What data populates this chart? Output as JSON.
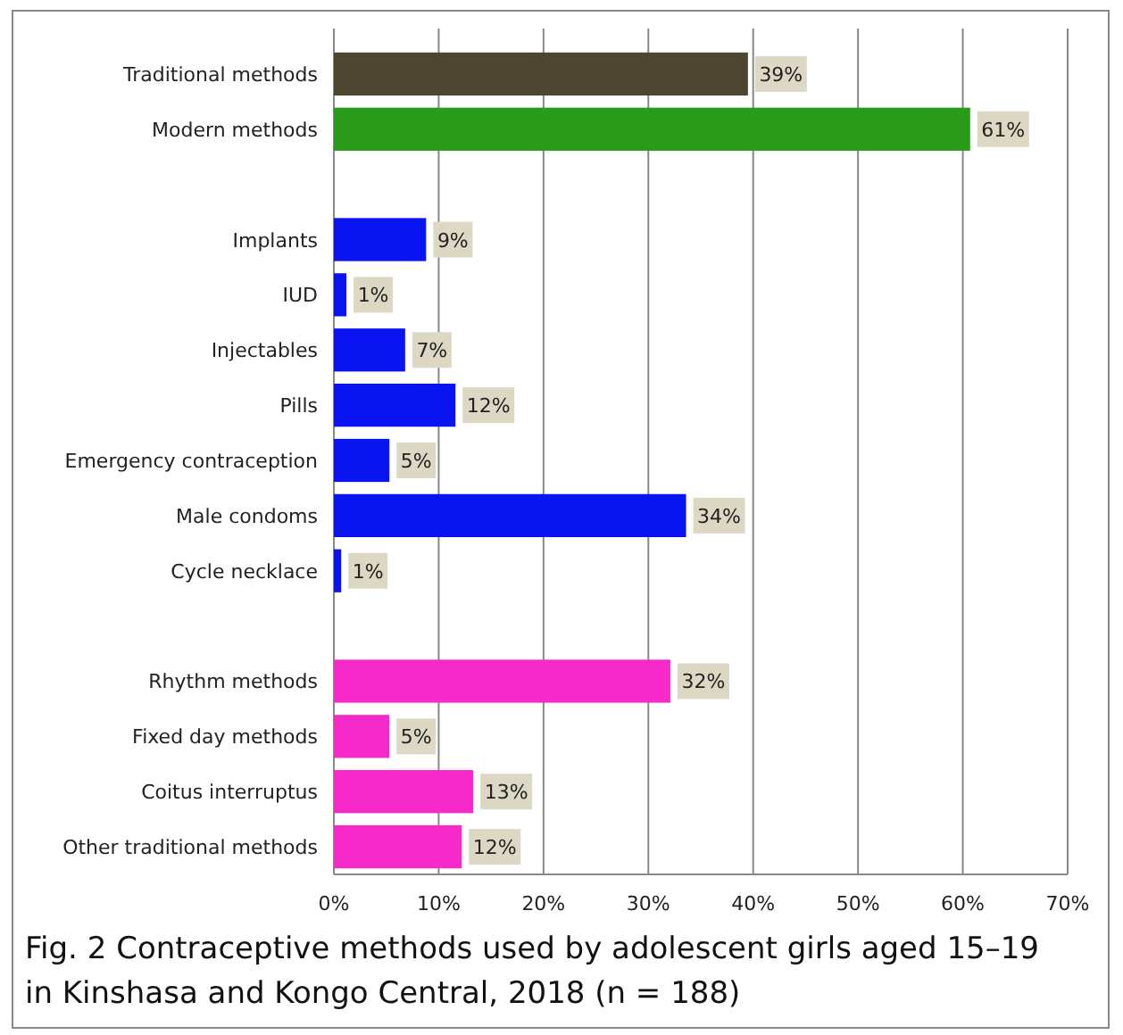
{
  "chart_data": {
    "type": "bar",
    "orientation": "horizontal",
    "title": "Fig. 2  Contraceptive methods used by adolescent girls aged 15–19 in Kinshasa and Kongo Central, 2018 (n = 188)",
    "categories": [
      "Traditional methods",
      "Modern methods",
      null,
      "Implants",
      "IUD",
      "Injectables",
      "Pills",
      "Emergency contraception",
      "Male condoms",
      "Cycle necklace",
      null,
      "Rhythm methods",
      "Fixed day methods",
      "Coitus interruptus",
      "Other traditional methods"
    ],
    "values": [
      39.5,
      60.7,
      null,
      8.8,
      1.2,
      6.8,
      11.6,
      5.3,
      33.6,
      0.7,
      null,
      32.1,
      5.3,
      13.3,
      12.2
    ],
    "colors": [
      "#4d4530",
      "#2a9a1a",
      null,
      "#0a14f0",
      "#0a14f0",
      "#0a14f0",
      "#0a14f0",
      "#0a14f0",
      "#0a14f0",
      "#0a14f0",
      null,
      "#f52ac8",
      "#f52ac8",
      "#f52ac8",
      "#f52ac8"
    ],
    "value_labels": [
      "39%",
      "61%",
      null,
      "9%",
      "1%",
      "7%",
      "12%",
      "5%",
      "34%",
      "1%",
      null,
      "32%",
      "5%",
      "13%",
      "12%"
    ],
    "xlim": [
      0,
      70
    ],
    "xticks": [
      {
        "value": 0,
        "label": "0%"
      },
      {
        "value": 10,
        "label": "10%"
      },
      {
        "value": 20,
        "label": "20%"
      },
      {
        "value": 30,
        "label": "30%"
      },
      {
        "value": 40,
        "label": "40%"
      },
      {
        "value": 50,
        "label": "50%"
      },
      {
        "value": 60,
        "label": "60%"
      },
      {
        "value": 70,
        "label": "70%"
      }
    ],
    "grid": "x"
  }
}
